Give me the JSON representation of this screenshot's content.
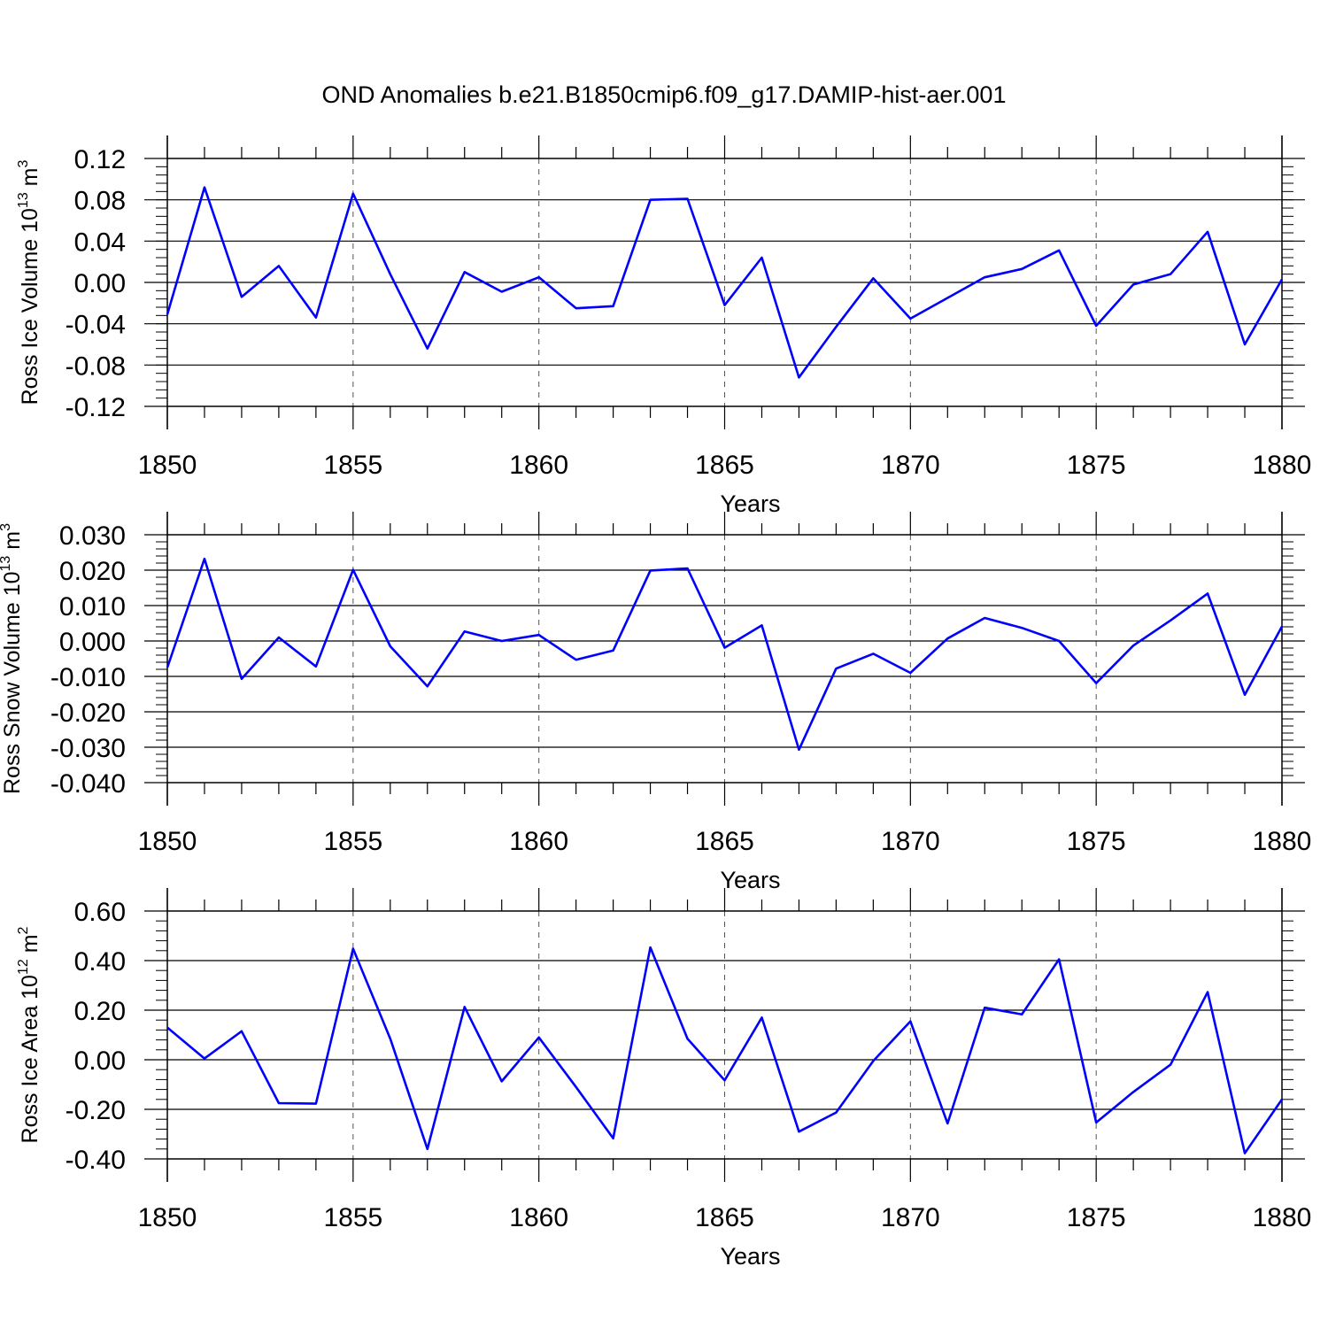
{
  "title": "OND Anomalies b.e21.B1850cmip6.f09_g17.DAMIP-hist-aer.001",
  "colors": {
    "line": "#0000ff",
    "axis": "#000000",
    "grid": "#555555"
  },
  "chart_data": [
    {
      "type": "line",
      "ylabel": {
        "text": "Ross Ice Volume 10",
        "sup": "13",
        "unit": " m",
        "unit_sup": "3"
      },
      "xlabel": "Years",
      "xlim": [
        1850,
        1880
      ],
      "ylim": [
        -0.12,
        0.12
      ],
      "yticks": [
        "0.12",
        "0.08",
        "0.04",
        "0.00",
        "-0.04",
        "-0.08",
        "-0.12"
      ],
      "yticks_values": [
        0.12,
        0.08,
        0.04,
        0.0,
        -0.04,
        -0.08,
        -0.12
      ],
      "xticks": [
        "1850",
        "1855",
        "1860",
        "1865",
        "1870",
        "1875",
        "1880"
      ],
      "xticks_values": [
        1850,
        1855,
        1860,
        1865,
        1870,
        1875,
        1880
      ],
      "grid": "vertical dashed at major x ticks",
      "series": [
        {
          "x": [
            1850,
            1851,
            1852,
            1853,
            1854,
            1855,
            1856,
            1857,
            1858,
            1859,
            1860,
            1861,
            1862,
            1863,
            1864,
            1865,
            1866,
            1867,
            1868,
            1869,
            1870,
            1871,
            1872,
            1873,
            1874,
            1875,
            1876,
            1877,
            1878,
            1879,
            1880
          ],
          "values": [
            -0.031,
            0.092,
            -0.014,
            0.016,
            -0.034,
            0.086,
            0.008,
            -0.064,
            0.01,
            -0.009,
            0.005,
            -0.025,
            -0.023,
            0.08,
            0.081,
            -0.022,
            0.024,
            -0.092,
            -0.043,
            0.004,
            -0.035,
            -0.015,
            0.005,
            0.013,
            0.031,
            -0.042,
            -0.002,
            0.008,
            0.049,
            -0.06,
            0.003
          ]
        }
      ]
    },
    {
      "type": "line",
      "ylabel": {
        "text": "Ross Snow Volume 10",
        "sup": "13",
        "unit": " m",
        "unit_sup": "3"
      },
      "xlabel": "Years",
      "xlim": [
        1850,
        1880
      ],
      "ylim": [
        -0.04,
        0.03
      ],
      "yticks": [
        "0.030",
        "0.020",
        "0.010",
        "0.000",
        "-0.010",
        "-0.020",
        "-0.030",
        "-0.040"
      ],
      "yticks_values": [
        0.03,
        0.02,
        0.01,
        0.0,
        -0.01,
        -0.02,
        -0.03,
        -0.04
      ],
      "xticks": [
        "1850",
        "1855",
        "1860",
        "1865",
        "1870",
        "1875",
        "1880"
      ],
      "xticks_values": [
        1850,
        1855,
        1860,
        1865,
        1870,
        1875,
        1880
      ],
      "grid": "vertical dashed at major x ticks",
      "series": [
        {
          "x": [
            1850,
            1851,
            1852,
            1853,
            1854,
            1855,
            1856,
            1857,
            1858,
            1859,
            1860,
            1861,
            1862,
            1863,
            1864,
            1865,
            1866,
            1867,
            1868,
            1869,
            1870,
            1871,
            1872,
            1873,
            1874,
            1875,
            1876,
            1877,
            1878,
            1879,
            1880
          ],
          "values": [
            -0.0075,
            0.0232,
            -0.0107,
            0.001,
            -0.0072,
            0.0201,
            -0.0015,
            -0.0128,
            0.0027,
            0.0,
            0.0017,
            -0.0053,
            -0.0027,
            0.0199,
            0.0205,
            -0.0019,
            0.0044,
            -0.0307,
            -0.0078,
            -0.0036,
            -0.009,
            0.0007,
            0.0065,
            0.0037,
            0.0,
            -0.0119,
            -0.0013,
            0.0058,
            0.0134,
            -0.0152,
            0.0041
          ]
        }
      ]
    },
    {
      "type": "line",
      "ylabel": {
        "text": "Ross Ice Area 10",
        "sup": "12",
        "unit": " m",
        "unit_sup": "2"
      },
      "xlabel": "Years",
      "xlim": [
        1850,
        1880
      ],
      "ylim": [
        -0.4,
        0.6
      ],
      "yticks": [
        "0.60",
        "0.40",
        "0.20",
        "0.00",
        "-0.20",
        "-0.40"
      ],
      "yticks_values": [
        0.6,
        0.4,
        0.2,
        0.0,
        -0.2,
        -0.4
      ],
      "xticks": [
        "1850",
        "1855",
        "1860",
        "1865",
        "1870",
        "1875",
        "1880"
      ],
      "xticks_values": [
        1850,
        1855,
        1860,
        1865,
        1870,
        1875,
        1880
      ],
      "grid": "vertical dashed at major x ticks",
      "series": [
        {
          "x": [
            1850,
            1851,
            1852,
            1853,
            1854,
            1855,
            1856,
            1857,
            1858,
            1859,
            1860,
            1861,
            1862,
            1863,
            1864,
            1865,
            1866,
            1867,
            1868,
            1869,
            1870,
            1871,
            1872,
            1873,
            1874,
            1875,
            1876,
            1877,
            1878,
            1879,
            1880
          ],
          "values": [
            0.13,
            0.005,
            0.115,
            -0.175,
            -0.177,
            0.448,
            0.085,
            -0.36,
            0.213,
            -0.087,
            0.09,
            -0.11,
            -0.317,
            0.453,
            0.085,
            -0.083,
            0.17,
            -0.29,
            -0.213,
            -0.005,
            0.155,
            -0.257,
            0.21,
            0.183,
            0.405,
            -0.253,
            -0.13,
            -0.02,
            0.273,
            -0.377,
            -0.16
          ]
        }
      ]
    }
  ]
}
